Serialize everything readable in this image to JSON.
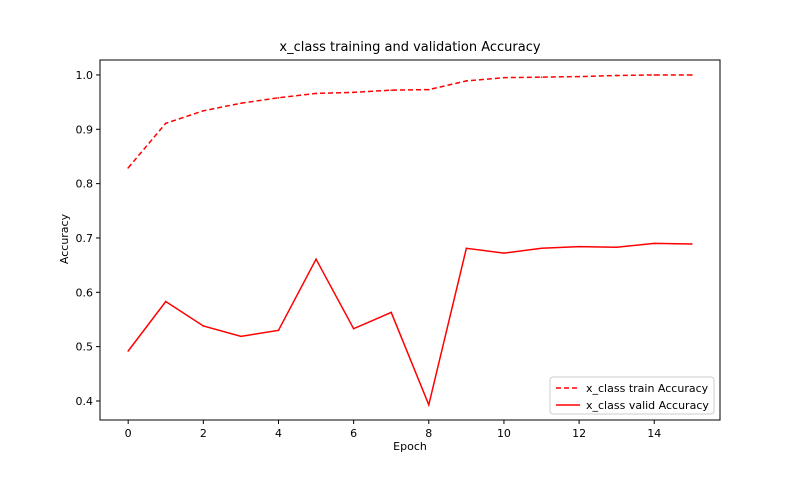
{
  "chart_data": {
    "type": "line",
    "title": "x_class training and validation Accuracy",
    "xlabel": "Epoch",
    "ylabel": "Accuracy",
    "xlim": [
      -0.75,
      15.75
    ],
    "ylim": [
      0.365,
      1.0275
    ],
    "xticks": [
      0,
      2,
      4,
      6,
      8,
      10,
      12,
      14
    ],
    "yticks": [
      0.4,
      0.5,
      0.6,
      0.7,
      0.8,
      0.9,
      1.0
    ],
    "x": [
      0,
      1,
      2,
      3,
      4,
      5,
      6,
      7,
      8,
      9,
      10,
      11,
      12,
      13,
      14,
      15
    ],
    "series": [
      {
        "name": "x_class train Accuracy",
        "style": "dashed",
        "color": "#ff0000",
        "values": [
          0.829,
          0.911,
          0.934,
          0.948,
          0.958,
          0.966,
          0.968,
          0.972,
          0.973,
          0.989,
          0.995,
          0.996,
          0.997,
          0.999,
          1.0,
          1.0
        ]
      },
      {
        "name": "x_class valid Accuracy",
        "style": "solid",
        "color": "#ff0000",
        "values": [
          0.492,
          0.583,
          0.538,
          0.519,
          0.53,
          0.661,
          0.533,
          0.563,
          0.393,
          0.681,
          0.672,
          0.681,
          0.684,
          0.683,
          0.69,
          0.689
        ]
      }
    ],
    "grid": false,
    "legend": "lower-right"
  }
}
